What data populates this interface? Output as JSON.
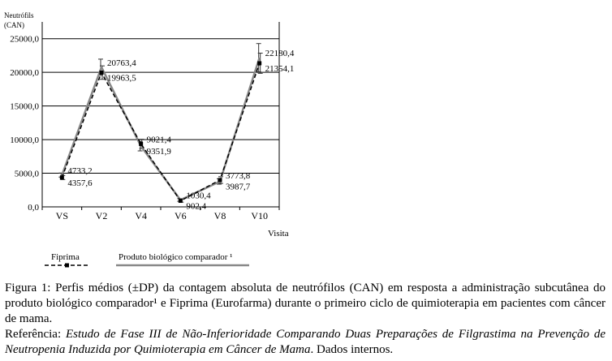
{
  "chart_data": {
    "type": "line",
    "ylabel_line1": "Neutrófils",
    "ylabel_line2": "(CAN)",
    "xlabel": "Visita",
    "categories": [
      "VS",
      "V2",
      "V4",
      "V6",
      "V8",
      "V10"
    ],
    "y_ticks": [
      "0,0",
      "5000,0",
      "10000,0",
      "15000,0",
      "20000,0",
      "25000,0"
    ],
    "ylim": [
      0,
      27500
    ],
    "grid": "horizontal",
    "legend_position": "bottom",
    "series": [
      {
        "name": "Fiprima",
        "style": "dashed-square-markers",
        "color": "#000000",
        "values": [
          4357.6,
          19963.5,
          9351.9,
          902.4,
          3987.7,
          21354.1
        ],
        "labels": [
          "4357,6",
          "19963,5",
          "9351,9",
          "902,4",
          "3987,7",
          "21354,1"
        ],
        "error": [
          300,
          1000,
          700,
          200,
          500,
          1500
        ]
      },
      {
        "name": "Produto biológico comparador ¹",
        "style": "solid-gray",
        "color": "#888888",
        "values": [
          4733.2,
          20763.4,
          9021.4,
          1030.4,
          3773.8,
          22180.4
        ],
        "labels": [
          "4733,2",
          "20763,4",
          "9021,4",
          "1030,4",
          "3773,8",
          "22180,4"
        ],
        "error": [
          300,
          1200,
          700,
          200,
          400,
          2100
        ]
      }
    ]
  },
  "caption": {
    "figure_text": "Figura 1: Perfis médios (±DP) da contagem absoluta de neutrófilos (CAN) em resposta a administração subcutânea do produto biológico comparador¹ e Fiprima (Eurofarma) durante o primeiro ciclo de quimioterapia em pacientes com câncer de mama.",
    "reference_label": "Referência: ",
    "reference_title": "Estudo de Fase III de Não-Inferioridade Comparando Duas Preparações de Filgrastima na Prevenção de Neutropenia Induzida por Quimioterapia em Câncer de Mama",
    "reference_tail": ". Dados internos."
  }
}
